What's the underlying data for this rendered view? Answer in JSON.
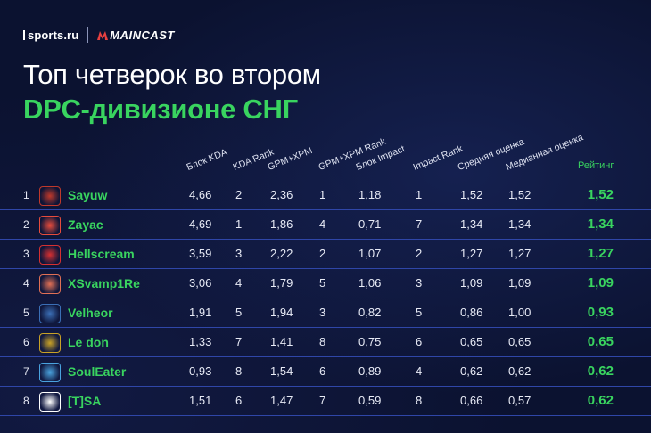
{
  "brand": {
    "site": "sports.ru",
    "partner": "MAINCAST"
  },
  "title": {
    "line1": "Топ четверок во втором",
    "line2": "DPC-дивизионе СНГ"
  },
  "columns": [
    "Блок KDA",
    "KDA Rank",
    "GPM+XPM",
    "GPM+XPM Rank",
    "Блок Impact",
    "Impact Rank",
    "Средняя оценка",
    "Медианная оценка",
    "Рейтинг"
  ],
  "rows": [
    {
      "pos": "1",
      "name": "Sayuw",
      "icon": "team-logo-icon",
      "icon_color": "#c0392b",
      "kda": "4,66",
      "kda_rank": "2",
      "gpm": "2,36",
      "gpm_rank": "1",
      "impact": "1,18",
      "impact_rank": "1",
      "avg": "1,52",
      "median": "1,52",
      "rating": "1,52"
    },
    {
      "pos": "2",
      "name": "Zayac",
      "icon": "team-logo-icon",
      "icon_color": "#e74c3c",
      "kda": "4,69",
      "kda_rank": "1",
      "gpm": "1,86",
      "gpm_rank": "4",
      "impact": "0,71",
      "impact_rank": "7",
      "avg": "1,34",
      "median": "1,34",
      "rating": "1,34"
    },
    {
      "pos": "3",
      "name": "Hellscream",
      "icon": "team-logo-icon",
      "icon_color": "#d63031",
      "kda": "3,59",
      "kda_rank": "3",
      "gpm": "2,22",
      "gpm_rank": "2",
      "impact": "1,07",
      "impact_rank": "2",
      "avg": "1,27",
      "median": "1,27",
      "rating": "1,27"
    },
    {
      "pos": "4",
      "name": "XSvamp1Re",
      "icon": "team-logo-icon",
      "icon_color": "#e17055",
      "kda": "3,06",
      "kda_rank": "4",
      "gpm": "1,79",
      "gpm_rank": "5",
      "impact": "1,06",
      "impact_rank": "3",
      "avg": "1,09",
      "median": "1,09",
      "rating": "1,09"
    },
    {
      "pos": "5",
      "name": "Velheor",
      "icon": "team-logo-icon",
      "icon_color": "#3b6fb6",
      "kda": "1,91",
      "kda_rank": "5",
      "gpm": "1,94",
      "gpm_rank": "3",
      "impact": "0,82",
      "impact_rank": "5",
      "avg": "0,86",
      "median": "1,00",
      "rating": "0,93"
    },
    {
      "pos": "6",
      "name": "Le don",
      "icon": "team-logo-icon",
      "icon_color": "#c9a227",
      "kda": "1,33",
      "kda_rank": "7",
      "gpm": "1,41",
      "gpm_rank": "8",
      "impact": "0,75",
      "impact_rank": "6",
      "avg": "0,65",
      "median": "0,65",
      "rating": "0,65"
    },
    {
      "pos": "7",
      "name": "SoulEater",
      "icon": "team-logo-icon",
      "icon_color": "#4aa3df",
      "kda": "0,93",
      "kda_rank": "8",
      "gpm": "1,54",
      "gpm_rank": "6",
      "impact": "0,89",
      "impact_rank": "4",
      "avg": "0,62",
      "median": "0,62",
      "rating": "0,62"
    },
    {
      "pos": "8",
      "name": "[T]SA",
      "icon": "team-logo-icon",
      "icon_color": "#ffffff",
      "kda": "1,51",
      "kda_rank": "6",
      "gpm": "1,47",
      "gpm_rank": "7",
      "impact": "0,59",
      "impact_rank": "8",
      "avg": "0,66",
      "median": "0,57",
      "rating": "0,62"
    }
  ],
  "colors": {
    "accent": "#39d45f",
    "background": "#0b1230",
    "divider": "#2f46a8"
  }
}
